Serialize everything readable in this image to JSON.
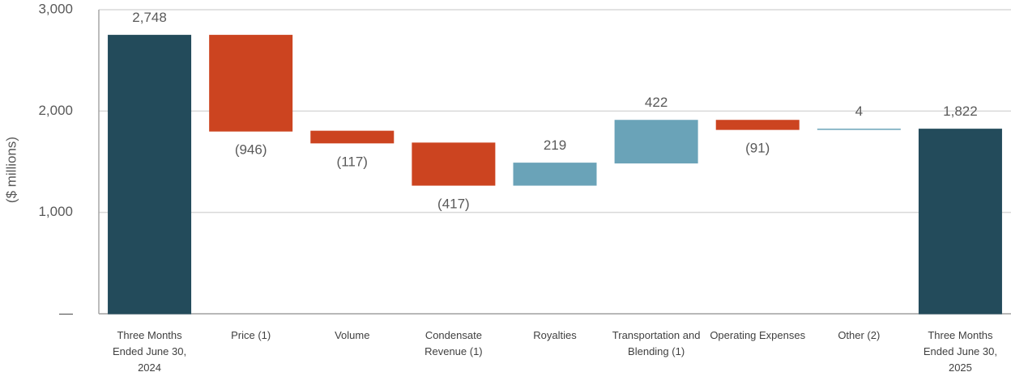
{
  "chart_data": {
    "type": "waterfall",
    "y_label": "($ millions)",
    "categories": [
      "Three Months Ended June 30, 2024",
      "Price (1)",
      "Volume",
      "Condensate Revenue (1)",
      "Royalties",
      "Transportation and Blending (1)",
      "Operating Expenses",
      "Other (2)",
      "Three Months Ended June 30, 2025"
    ],
    "values": [
      2748,
      -946,
      -117,
      -417,
      219,
      422,
      -91,
      4,
      1822
    ],
    "value_labels": [
      "2,748",
      "(946)",
      "(117)",
      "(417)",
      "219",
      "422",
      "(91)",
      "4",
      "1,822"
    ],
    "colors": {
      "total": "#234b5b",
      "increase": "#6aa3b8",
      "decrease": "#cc4420"
    },
    "ylim": [
      0,
      3000
    ],
    "yticks": [
      {
        "value": 0,
        "label": "—"
      },
      {
        "value": 1000,
        "label": "1,000"
      },
      {
        "value": 2000,
        "label": "2,000"
      },
      {
        "value": 3000,
        "label": "3,000"
      }
    ],
    "grid": true
  }
}
